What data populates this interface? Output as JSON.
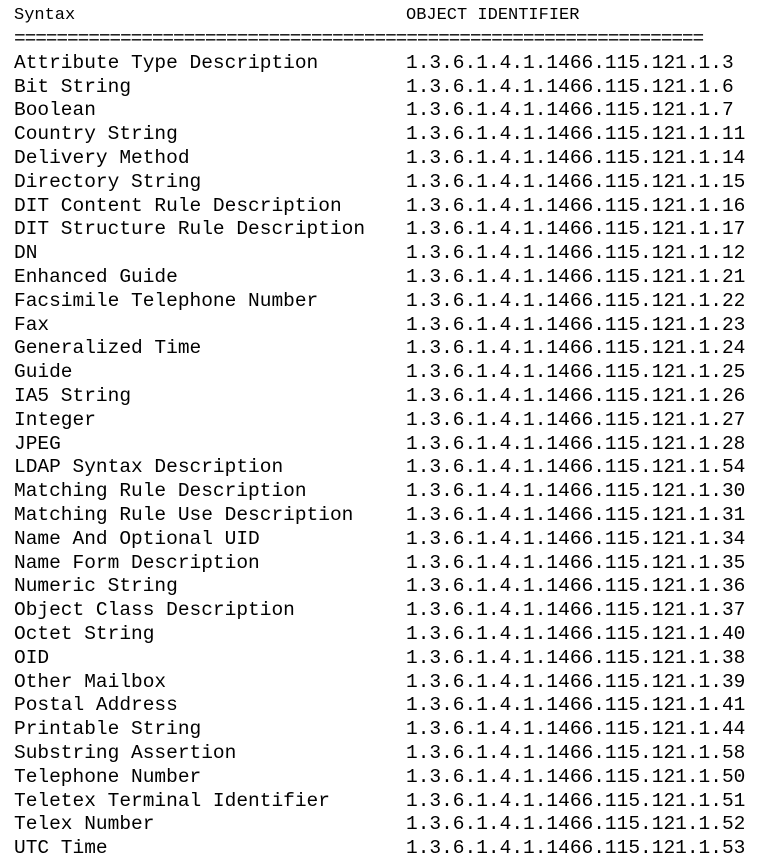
{
  "header": {
    "syntax": "Syntax",
    "oid": "OBJECT IDENTIFIER"
  },
  "rule": "=================================================================",
  "rows": [
    {
      "syntax": "Attribute Type Description",
      "oid": "1.3.6.1.4.1.1466.115.121.1.3"
    },
    {
      "syntax": "Bit String",
      "oid": "1.3.6.1.4.1.1466.115.121.1.6"
    },
    {
      "syntax": "Boolean",
      "oid": "1.3.6.1.4.1.1466.115.121.1.7"
    },
    {
      "syntax": "Country String",
      "oid": "1.3.6.1.4.1.1466.115.121.1.11"
    },
    {
      "syntax": "Delivery Method",
      "oid": "1.3.6.1.4.1.1466.115.121.1.14"
    },
    {
      "syntax": "Directory String",
      "oid": "1.3.6.1.4.1.1466.115.121.1.15"
    },
    {
      "syntax": "DIT Content Rule Description",
      "oid": "1.3.6.1.4.1.1466.115.121.1.16"
    },
    {
      "syntax": "DIT Structure Rule Description",
      "oid": "1.3.6.1.4.1.1466.115.121.1.17"
    },
    {
      "syntax": "DN",
      "oid": "1.3.6.1.4.1.1466.115.121.1.12"
    },
    {
      "syntax": "Enhanced Guide",
      "oid": "1.3.6.1.4.1.1466.115.121.1.21"
    },
    {
      "syntax": "Facsimile Telephone Number",
      "oid": "1.3.6.1.4.1.1466.115.121.1.22"
    },
    {
      "syntax": "Fax",
      "oid": "1.3.6.1.4.1.1466.115.121.1.23"
    },
    {
      "syntax": "Generalized Time",
      "oid": "1.3.6.1.4.1.1466.115.121.1.24"
    },
    {
      "syntax": "Guide",
      "oid": "1.3.6.1.4.1.1466.115.121.1.25"
    },
    {
      "syntax": "IA5 String",
      "oid": "1.3.6.1.4.1.1466.115.121.1.26"
    },
    {
      "syntax": "Integer",
      "oid": "1.3.6.1.4.1.1466.115.121.1.27"
    },
    {
      "syntax": "JPEG",
      "oid": "1.3.6.1.4.1.1466.115.121.1.28"
    },
    {
      "syntax": "LDAP Syntax Description",
      "oid": "1.3.6.1.4.1.1466.115.121.1.54"
    },
    {
      "syntax": "Matching Rule Description",
      "oid": "1.3.6.1.4.1.1466.115.121.1.30"
    },
    {
      "syntax": "Matching Rule Use Description",
      "oid": "1.3.6.1.4.1.1466.115.121.1.31"
    },
    {
      "syntax": "Name And Optional UID",
      "oid": "1.3.6.1.4.1.1466.115.121.1.34"
    },
    {
      "syntax": "Name Form Description",
      "oid": "1.3.6.1.4.1.1466.115.121.1.35"
    },
    {
      "syntax": "Numeric String",
      "oid": "1.3.6.1.4.1.1466.115.121.1.36"
    },
    {
      "syntax": "Object Class Description",
      "oid": "1.3.6.1.4.1.1466.115.121.1.37"
    },
    {
      "syntax": "Octet String",
      "oid": "1.3.6.1.4.1.1466.115.121.1.40"
    },
    {
      "syntax": "OID",
      "oid": "1.3.6.1.4.1.1466.115.121.1.38"
    },
    {
      "syntax": "Other Mailbox",
      "oid": "1.3.6.1.4.1.1466.115.121.1.39"
    },
    {
      "syntax": "Postal Address",
      "oid": "1.3.6.1.4.1.1466.115.121.1.41"
    },
    {
      "syntax": "Printable String",
      "oid": "1.3.6.1.4.1.1466.115.121.1.44"
    },
    {
      "syntax": "Substring Assertion",
      "oid": "1.3.6.1.4.1.1466.115.121.1.58"
    },
    {
      "syntax": "Telephone Number",
      "oid": "1.3.6.1.4.1.1466.115.121.1.50"
    },
    {
      "syntax": "Teletex Terminal Identifier",
      "oid": "1.3.6.1.4.1.1466.115.121.1.51"
    },
    {
      "syntax": "Telex Number",
      "oid": "1.3.6.1.4.1.1466.115.121.1.52"
    },
    {
      "syntax": "UTC Time",
      "oid": "1.3.6.1.4.1.1466.115.121.1.53"
    }
  ]
}
